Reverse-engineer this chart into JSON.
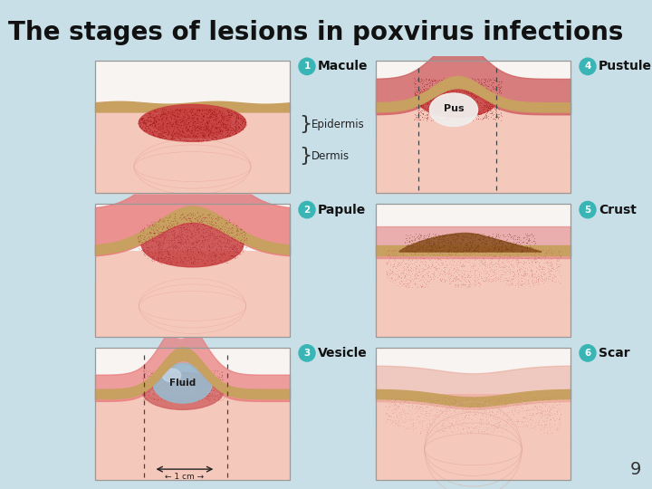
{
  "title": "The stages of lesions in poxvirus infections",
  "title_bg": "#b8dce8",
  "page_bg": "#c8dfe8",
  "title_color": "#111111",
  "title_fontsize": 20,
  "labels": [
    {
      "num": "1",
      "text": "Macule",
      "stage": 0
    },
    {
      "num": "2",
      "text": "Papule",
      "stage": 1
    },
    {
      "num": "3",
      "text": "Vesicle",
      "stage": 2
    },
    {
      "num": "4",
      "text": "Pustule",
      "stage": 3
    },
    {
      "num": "5",
      "text": "Crust",
      "stage": 4
    },
    {
      "num": "6",
      "text": "Scar",
      "stage": 5
    }
  ],
  "badge_color": "#3ab5b5",
  "panel_border": "#aaaaaa",
  "page_number": "9",
  "skin_colors": {
    "dermis_bg": "#f5c8bc",
    "epidermis_red": "#c84040",
    "epidermis_pink": "#e87878",
    "tan_layer": "#c8a060",
    "tan_dark": "#b8905a",
    "papillae": "#f0b0a8",
    "white_bg": "#f8f4f2",
    "pus_color": "#f0eeec",
    "fluid_color": "#9ab8cc",
    "crust_color": "#8b5020",
    "scar_color": "#e8a898"
  }
}
